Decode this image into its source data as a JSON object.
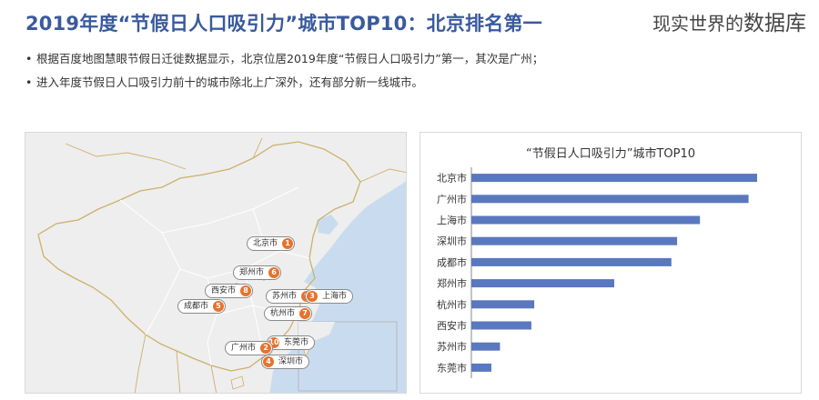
{
  "header": {
    "title": "2019年度“节假日人口吸引力”城市TOP10：北京排名第一",
    "watermark_small": "现实世界的",
    "watermark_big": "数据库"
  },
  "bullets": [
    "根据百度地图慧眼节假日迁徙数据显示，北京位居2019年度“节假日人口吸引力”第一，其次是广州；",
    "进入年度节假日人口吸引力前十的城市除北上广深外，还有部分新一线城市。"
  ],
  "map": {
    "markers": [
      {
        "city": "北京市",
        "rank": "1"
      },
      {
        "city": "郑州市",
        "rank": "6"
      },
      {
        "city": "西安市",
        "rank": "8"
      },
      {
        "city": "苏州市",
        "rank": "9"
      },
      {
        "city": "上海市",
        "rank": "3"
      },
      {
        "city": "成都市",
        "rank": "5"
      },
      {
        "city": "杭州市",
        "rank": "7"
      },
      {
        "city": "东莞市",
        "rank": "10"
      },
      {
        "city": "广州市",
        "rank": "2"
      },
      {
        "city": "深圳市",
        "rank": "4"
      }
    ],
    "colors": {
      "land": "#eeeeee",
      "sea": "#c9dcef",
      "border": "#cdb06a",
      "province": "#ffffff",
      "marker": "#e8722c"
    }
  },
  "chart_data": {
    "type": "bar",
    "orientation": "horizontal",
    "title": "“节假日人口吸引力”城市TOP10",
    "categories": [
      "北京市",
      "广州市",
      "上海市",
      "深圳市",
      "成都市",
      "郑州市",
      "杭州市",
      "西安市",
      "苏州市",
      "东莞市"
    ],
    "values": [
      100,
      97,
      80,
      72,
      70,
      50,
      22,
      21,
      10,
      7
    ],
    "xlim": [
      0,
      100
    ],
    "grid": false,
    "legend": "none",
    "color": "#5a78bf"
  }
}
